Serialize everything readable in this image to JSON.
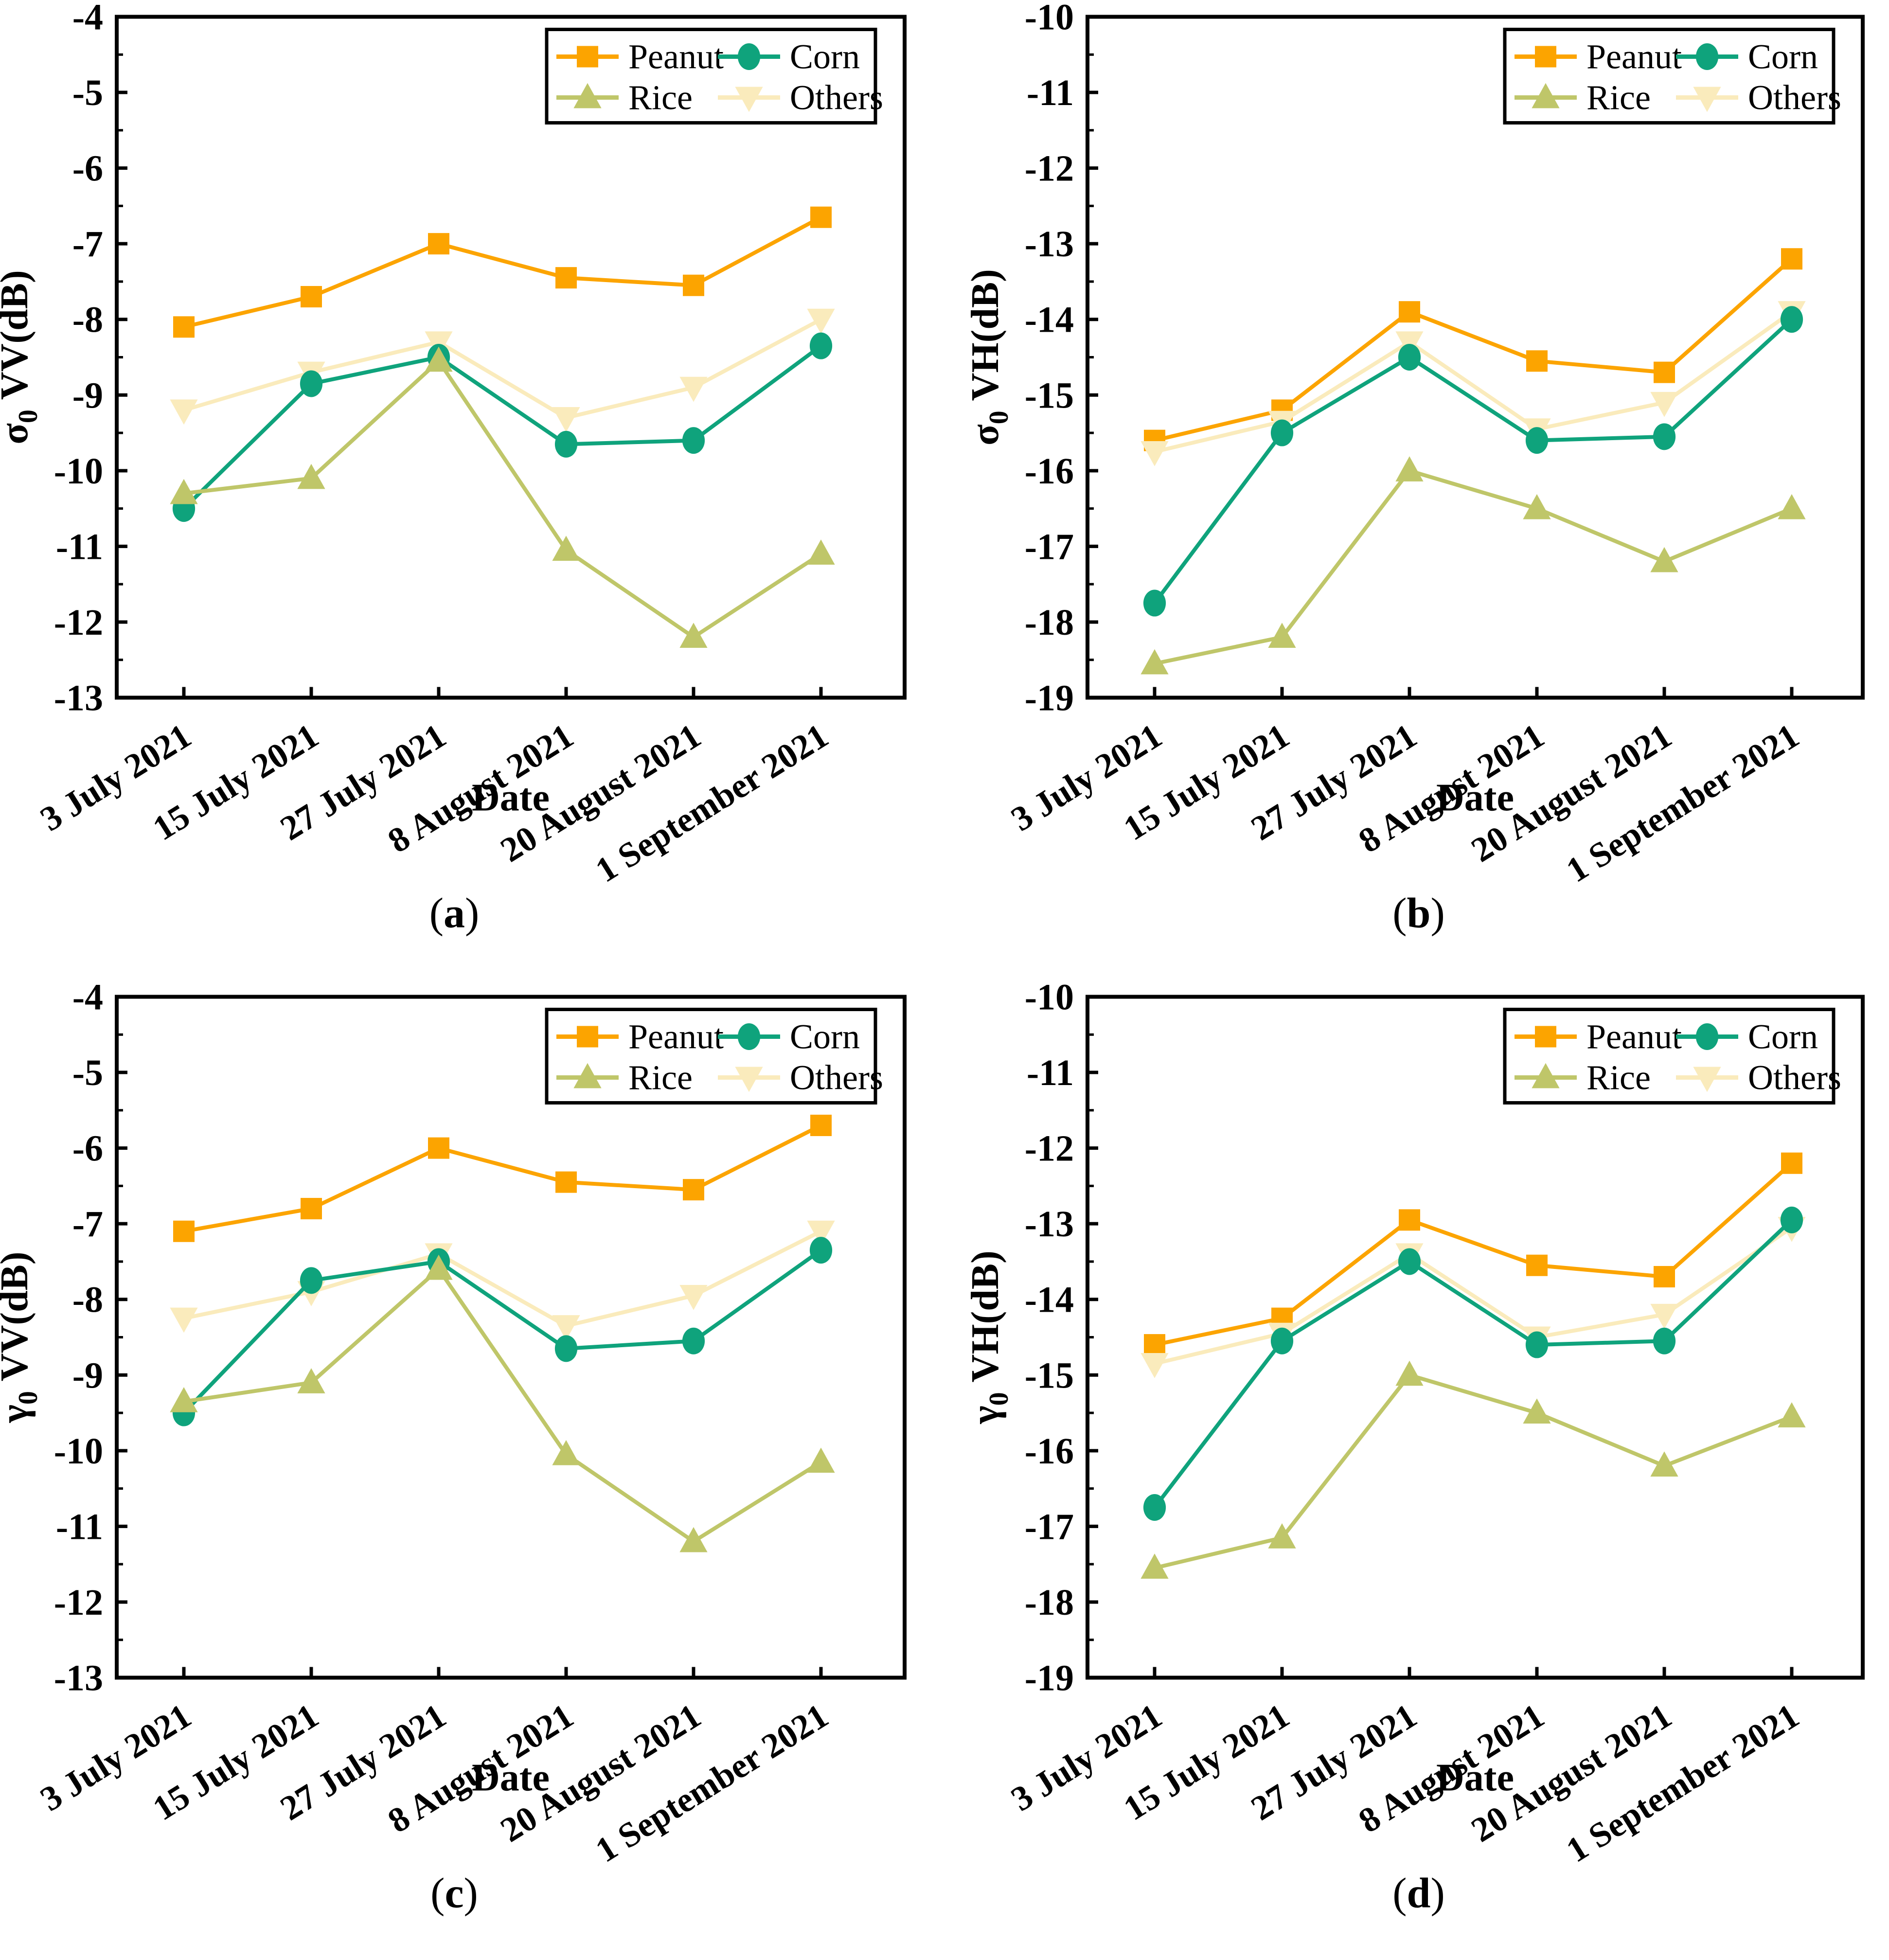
{
  "figure": {
    "background": "#ffffff",
    "axis_color": "#000000",
    "series_colors": {
      "peanut": "#FCA400",
      "corn": "#0FA37C",
      "rice": "#BFC669",
      "others": "#FAEBBC"
    },
    "legend_labels": [
      "Peanut",
      "Corn",
      "Rice",
      "Others"
    ],
    "x_axis_label": "Date",
    "categories": [
      "3 July 2021",
      "15 July 2021",
      "27 July 2021",
      "8 August 2021",
      "20 August 2021",
      "1 September 2021"
    ]
  },
  "chart_data": [
    {
      "type": "line",
      "panel": "a",
      "caption_pre": "(",
      "caption_letter": "a",
      "caption_post": ")",
      "ylabel_symbol": "σ",
      "ylabel_sub": "0",
      "ylabel_rest": " VV(dB)",
      "xlabel": "Date",
      "ylim": [
        -13,
        -4
      ],
      "yticks": [
        -4,
        -5,
        -6,
        -7,
        -8,
        -9,
        -10,
        -11,
        -12,
        -13
      ],
      "y_minor_step": 0.5,
      "grid": false,
      "legend_position": "top-right",
      "categories": [
        "3 July 2021",
        "15 July 2021",
        "27 July 2021",
        "8 August 2021",
        "20 August 2021",
        "1 September 2021"
      ],
      "series": [
        {
          "name": "Peanut",
          "marker": "square",
          "color": "#FCA400",
          "values": [
            -8.1,
            -7.7,
            -7.0,
            -7.45,
            -7.55,
            -6.65
          ]
        },
        {
          "name": "Corn",
          "marker": "circle",
          "color": "#0FA37C",
          "values": [
            -10.5,
            -8.85,
            -8.5,
            -9.65,
            -9.6,
            -8.35
          ]
        },
        {
          "name": "Rice",
          "marker": "triangle-up",
          "color": "#BFC669",
          "values": [
            -10.3,
            -10.1,
            -8.55,
            -11.05,
            -12.2,
            -11.1
          ]
        },
        {
          "name": "Others",
          "marker": "triangle-down",
          "color": "#FAEBBC",
          "values": [
            -9.2,
            -8.7,
            -8.3,
            -9.3,
            -8.9,
            -8.0
          ]
        }
      ]
    },
    {
      "type": "line",
      "panel": "b",
      "caption_pre": "(",
      "caption_letter": "b",
      "caption_post": ")",
      "ylabel_symbol": "σ",
      "ylabel_sub": "0",
      "ylabel_rest": " VH(dB)",
      "xlabel": "Date",
      "ylim": [
        -19,
        -10
      ],
      "yticks": [
        -10,
        -11,
        -12,
        -13,
        -14,
        -15,
        -16,
        -17,
        -18,
        -19
      ],
      "y_minor_step": 0.5,
      "grid": false,
      "legend_position": "top-right",
      "categories": [
        "3 July 2021",
        "15 July 2021",
        "27 July 2021",
        "8 August 2021",
        "20 August 2021",
        "1 September 2021"
      ],
      "series": [
        {
          "name": "Peanut",
          "marker": "square",
          "color": "#FCA400",
          "values": [
            -15.6,
            -15.2,
            -13.9,
            -14.55,
            -14.7,
            -13.2
          ]
        },
        {
          "name": "Corn",
          "marker": "circle",
          "color": "#0FA37C",
          "values": [
            -17.75,
            -15.5,
            -14.5,
            -15.6,
            -15.55,
            -14.0
          ]
        },
        {
          "name": "Rice",
          "marker": "triangle-up",
          "color": "#BFC669",
          "values": [
            -18.55,
            -18.2,
            -16.0,
            -16.5,
            -17.2,
            -16.5
          ]
        },
        {
          "name": "Others",
          "marker": "triangle-down",
          "color": "#FAEBBC",
          "values": [
            -15.75,
            -15.35,
            -14.3,
            -15.45,
            -15.1,
            -13.9
          ]
        }
      ]
    },
    {
      "type": "line",
      "panel": "c",
      "caption_pre": "(",
      "caption_letter": "c",
      "caption_post": ")",
      "ylabel_symbol": "γ",
      "ylabel_sub": "0",
      "ylabel_rest": " VV(dB)",
      "xlabel": "Date",
      "ylim": [
        -13,
        -4
      ],
      "yticks": [
        -4,
        -5,
        -6,
        -7,
        -8,
        -9,
        -10,
        -11,
        -12,
        -13
      ],
      "y_minor_step": 0.5,
      "grid": false,
      "legend_position": "top-right",
      "categories": [
        "3 July 2021",
        "15 July 2021",
        "27 July 2021",
        "8 August 2021",
        "20 August 2021",
        "1 September 2021"
      ],
      "series": [
        {
          "name": "Peanut",
          "marker": "square",
          "color": "#FCA400",
          "values": [
            -7.1,
            -6.8,
            -6.0,
            -6.45,
            -6.55,
            -5.7
          ]
        },
        {
          "name": "Corn",
          "marker": "circle",
          "color": "#0FA37C",
          "values": [
            -9.5,
            -7.75,
            -7.5,
            -8.65,
            -8.55,
            -7.35
          ]
        },
        {
          "name": "Rice",
          "marker": "triangle-up",
          "color": "#BFC669",
          "values": [
            -9.35,
            -9.1,
            -7.6,
            -10.05,
            -11.2,
            -10.15
          ]
        },
        {
          "name": "Others",
          "marker": "triangle-down",
          "color": "#FAEBBC",
          "values": [
            -8.25,
            -7.9,
            -7.4,
            -8.35,
            -7.95,
            -7.1
          ]
        }
      ]
    },
    {
      "type": "line",
      "panel": "d",
      "caption_pre": "(",
      "caption_letter": "d",
      "caption_post": ")",
      "ylabel_symbol": "γ",
      "ylabel_sub": "0",
      "ylabel_rest": " VH(dB)",
      "xlabel": "Date",
      "ylim": [
        -19,
        -10
      ],
      "yticks": [
        -10,
        -11,
        -12,
        -13,
        -14,
        -15,
        -16,
        -17,
        -18,
        -19
      ],
      "y_minor_step": 0.5,
      "grid": false,
      "legend_position": "top-right",
      "categories": [
        "3 July 2021",
        "15 July 2021",
        "27 July 2021",
        "8 August 2021",
        "20 August 2021",
        "1 September 2021"
      ],
      "series": [
        {
          "name": "Peanut",
          "marker": "square",
          "color": "#FCA400",
          "values": [
            -14.6,
            -14.25,
            -12.95,
            -13.55,
            -13.7,
            -12.2
          ]
        },
        {
          "name": "Corn",
          "marker": "circle",
          "color": "#0FA37C",
          "values": [
            -16.75,
            -14.55,
            -13.5,
            -14.6,
            -14.55,
            -12.95
          ]
        },
        {
          "name": "Rice",
          "marker": "triangle-up",
          "color": "#BFC669",
          "values": [
            -17.55,
            -17.15,
            -15.0,
            -15.5,
            -16.2,
            -15.55
          ]
        },
        {
          "name": "Others",
          "marker": "triangle-down",
          "color": "#FAEBBC",
          "values": [
            -14.85,
            -14.45,
            -13.4,
            -14.5,
            -14.2,
            -13.05
          ]
        }
      ]
    }
  ]
}
